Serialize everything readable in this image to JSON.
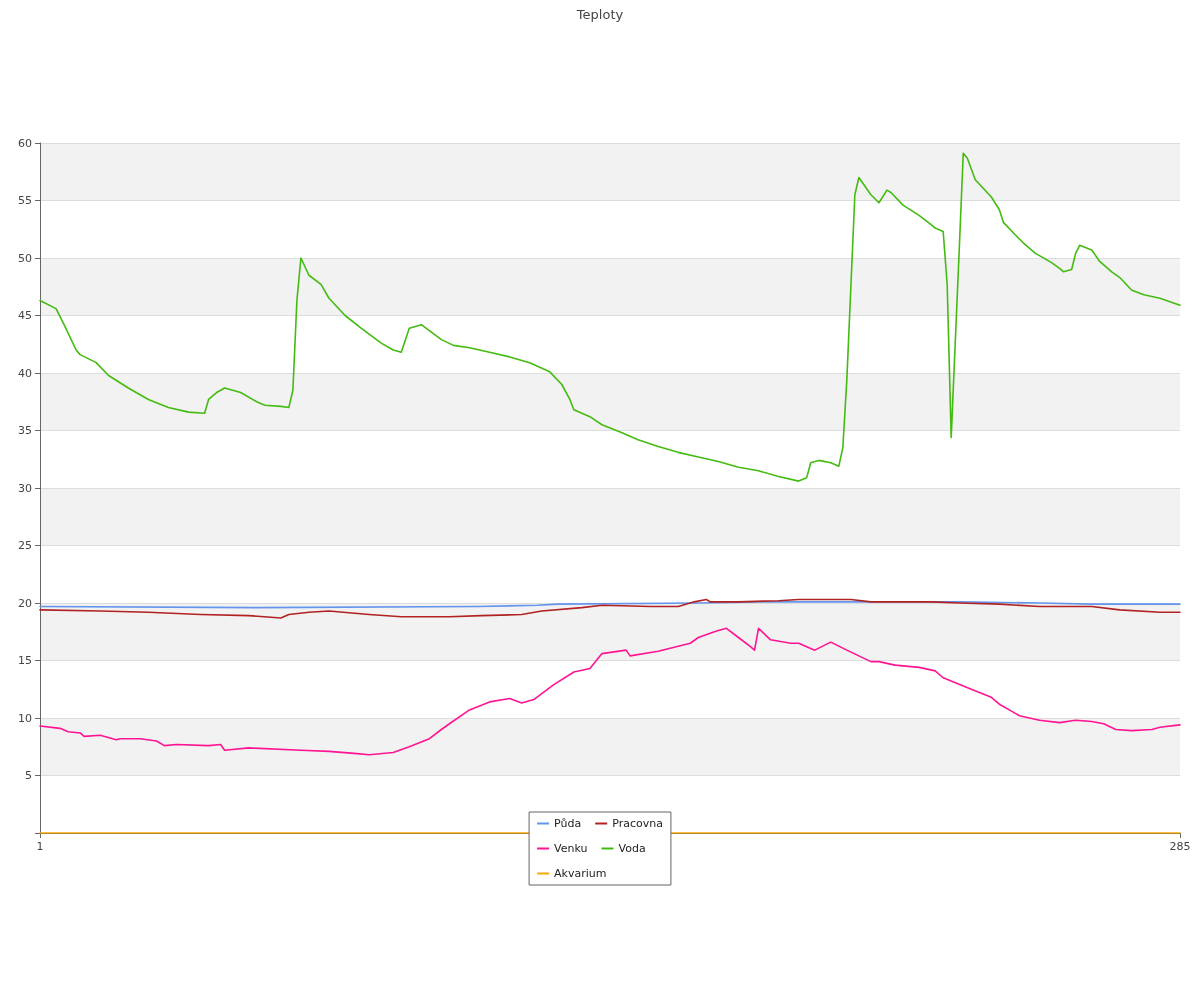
{
  "chart_data": {
    "type": "line",
    "title": "Teploty",
    "xlim": [
      1,
      285
    ],
    "xticks": [
      1,
      285
    ],
    "ylim": [
      0,
      60
    ],
    "yticks": [
      {
        "value": 0,
        "label": null
      },
      5,
      10,
      15,
      20,
      25,
      30,
      35,
      40,
      45,
      50,
      55,
      60
    ],
    "grid": "y",
    "legend": "bottom",
    "marker": "none",
    "line_style": "solid",
    "series": [
      {
        "name": "Půda",
        "color": "#6495ed",
        "x": [
          1,
          55,
          110,
          125,
          130,
          165,
          180,
          230,
          250,
          263,
          285
        ],
        "values": [
          19.7,
          19.6,
          19.7,
          19.8,
          19.9,
          20.0,
          20.1,
          20.1,
          20.0,
          19.9,
          19.9
        ]
      },
      {
        "name": "Pracovna",
        "color": "#b22222",
        "x": [
          1,
          16,
          28,
          41,
          53,
          61,
          63,
          68,
          73,
          83,
          91,
          103,
          111,
          121,
          126,
          136,
          141,
          153,
          160,
          164,
          167,
          168,
          175,
          185,
          190,
          203,
          208,
          223,
          230,
          240,
          250,
          263,
          270,
          280,
          285
        ],
        "values": [
          19.4,
          19.3,
          19.2,
          19.0,
          18.9,
          18.7,
          19.0,
          19.2,
          19.3,
          19.0,
          18.8,
          18.8,
          18.9,
          19.0,
          19.3,
          19.6,
          19.8,
          19.7,
          19.7,
          20.1,
          20.3,
          20.1,
          20.1,
          20.2,
          20.3,
          20.3,
          20.1,
          20.1,
          20.0,
          19.9,
          19.7,
          19.7,
          19.4,
          19.2,
          19.2
        ]
      },
      {
        "name": "Venku",
        "color": "#ff1493",
        "x": [
          1,
          6,
          8,
          11,
          12,
          16,
          20,
          21,
          26,
          30,
          32,
          35,
          43,
          46,
          47,
          53,
          66,
          73,
          80,
          83,
          89,
          93,
          98,
          101,
          103,
          108,
          113,
          118,
          121,
          124,
          129,
          134,
          138,
          141,
          147,
          148,
          155,
          163,
          165,
          169,
          170,
          172,
          175,
          178,
          179,
          180,
          183,
          188,
          190,
          194,
          198,
          202,
          208,
          210,
          214,
          220,
          224,
          226,
          233,
          238,
          240,
          243,
          245,
          250,
          255,
          259,
          263,
          266,
          269,
          273,
          278,
          280,
          285
        ],
        "values": [
          9.3,
          9.1,
          8.8,
          8.7,
          8.4,
          8.5,
          8.1,
          8.2,
          8.2,
          8.0,
          7.6,
          7.7,
          7.6,
          7.7,
          7.2,
          7.4,
          7.2,
          7.1,
          6.9,
          6.8,
          7.0,
          7.5,
          8.2,
          9.0,
          9.5,
          10.7,
          11.4,
          11.7,
          11.3,
          11.6,
          12.9,
          14.0,
          14.3,
          15.6,
          15.9,
          15.4,
          15.8,
          16.5,
          17.0,
          17.5,
          17.6,
          17.8,
          17.0,
          16.2,
          15.9,
          17.8,
          16.8,
          16.5,
          16.5,
          15.9,
          16.6,
          15.9,
          14.9,
          14.9,
          14.6,
          14.4,
          14.1,
          13.5,
          12.5,
          11.8,
          11.2,
          10.6,
          10.2,
          9.8,
          9.6,
          9.8,
          9.7,
          9.5,
          9.0,
          8.9,
          9.0,
          9.2,
          9.4
        ]
      },
      {
        "name": "Voda",
        "color": "#44bb11",
        "x": [
          1,
          5,
          7,
          10,
          11,
          15,
          18,
          23,
          28,
          33,
          38,
          42,
          43,
          45,
          47,
          51,
          55,
          57,
          61,
          63,
          64,
          65,
          66,
          68,
          71,
          73,
          77,
          81,
          86,
          89,
          91,
          93,
          96,
          101,
          104,
          108,
          113,
          118,
          123,
          128,
          131,
          133,
          134,
          138,
          141,
          146,
          150,
          155,
          160,
          165,
          170,
          175,
          180,
          185,
          190,
          192,
          193,
          195,
          198,
          200,
          201,
          202,
          204,
          205,
          208,
          210,
          212,
          213,
          216,
          220,
          223,
          224,
          226,
          227,
          228,
          230,
          231,
          232,
          234,
          238,
          240,
          241,
          244,
          246,
          249,
          253,
          255,
          256,
          258,
          259,
          260,
          263,
          265,
          268,
          270,
          273,
          276,
          280,
          285
        ],
        "values": [
          46.3,
          45.6,
          44.2,
          42.0,
          41.6,
          40.9,
          39.8,
          38.7,
          37.7,
          37.0,
          36.6,
          36.5,
          37.7,
          38.3,
          38.7,
          38.3,
          37.5,
          37.2,
          37.1,
          37.0,
          38.5,
          46.3,
          50.0,
          48.5,
          47.7,
          46.5,
          45.0,
          43.9,
          42.6,
          42.0,
          41.8,
          43.9,
          44.2,
          42.9,
          42.4,
          42.2,
          41.8,
          41.4,
          40.9,
          40.1,
          39.0,
          37.7,
          36.8,
          36.2,
          35.5,
          34.8,
          34.2,
          33.6,
          33.1,
          32.7,
          32.3,
          31.8,
          31.5,
          31.0,
          30.6,
          30.9,
          32.2,
          32.4,
          32.2,
          31.9,
          33.5,
          39.4,
          55.5,
          57.0,
          55.5,
          54.8,
          55.9,
          55.7,
          54.6,
          53.7,
          52.9,
          52.6,
          52.3,
          47.7,
          34.4,
          50.7,
          59.1,
          58.7,
          56.8,
          55.3,
          54.2,
          53.1,
          52.0,
          51.3,
          50.4,
          49.6,
          49.1,
          48.8,
          49.0,
          50.4,
          51.1,
          50.7,
          49.7,
          48.8,
          48.3,
          47.2,
          46.8,
          46.5,
          45.9
        ]
      },
      {
        "name": "Akvarium",
        "color": "#ffa500",
        "x": [
          1,
          285
        ],
        "values": [
          0,
          0
        ]
      }
    ]
  }
}
